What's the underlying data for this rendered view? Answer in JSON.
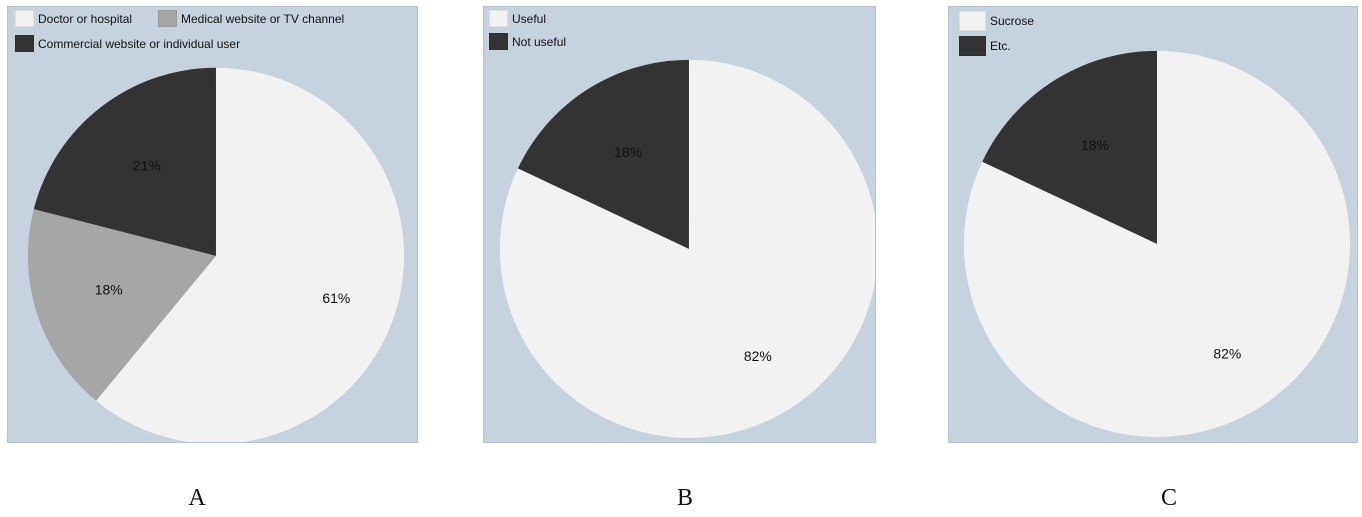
{
  "charts": [
    {
      "id": "A",
      "caption": "A",
      "chart_data": {
        "type": "pie",
        "slices": [
          {
            "label": "Doctor or hospital",
            "value": 61,
            "display": "61%",
            "color": "#f2f2f2"
          },
          {
            "label": "Medical website or TV channel",
            "value": 18,
            "display": "18%",
            "color": "#a6a6a6"
          },
          {
            "label": "Commercial website or individual user",
            "value": 21,
            "display": "21%",
            "color": "#333333"
          }
        ],
        "legend_placement": "top"
      }
    },
    {
      "id": "B",
      "caption": "B",
      "chart_data": {
        "type": "pie",
        "slices": [
          {
            "label": "Useful",
            "value": 82,
            "display": "82%",
            "color": "#f2f2f2"
          },
          {
            "label": "Not useful",
            "value": 18,
            "display": "18%",
            "color": "#333333"
          }
        ],
        "legend_placement": "top-left"
      }
    },
    {
      "id": "C",
      "caption": "C",
      "chart_data": {
        "type": "pie",
        "slices": [
          {
            "label": "Sucrose",
            "value": 82,
            "display": "82%",
            "color": "#f2f2f2"
          },
          {
            "label": "Etc.",
            "value": 18,
            "display": "18%",
            "color": "#333333"
          }
        ],
        "legend_placement": "top-left"
      }
    }
  ],
  "style": {
    "panel_background": "#c6d3df"
  }
}
